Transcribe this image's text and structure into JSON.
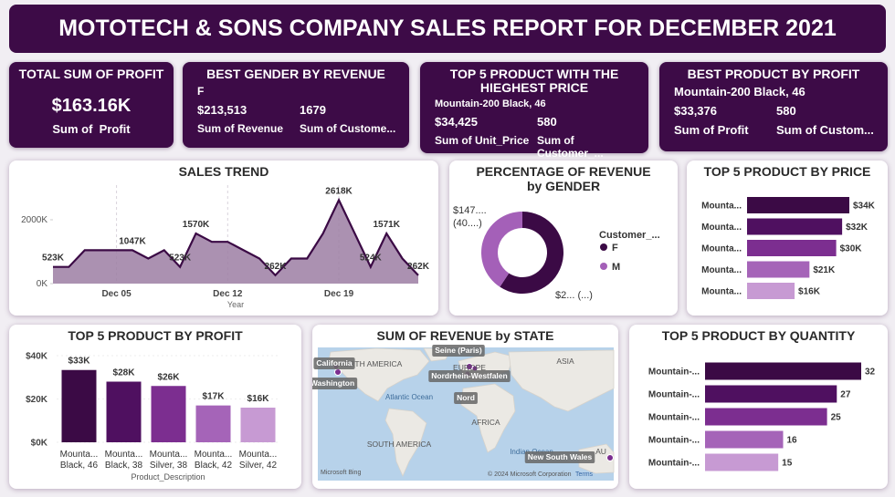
{
  "header": {
    "title": "MOTOTECH & SONS COMPANY SALES REPORT FOR DECEMBER 2021"
  },
  "cards": [
    {
      "title": "TOTAL SUM OF PROFIT",
      "value": "$163.16K",
      "label": "Sum of  Profit"
    },
    {
      "title": "BEST GENDER BY REVENUE",
      "subtitle": "F",
      "metrics": [
        {
          "value": "$213,513",
          "label": "Sum of Revenue"
        },
        {
          "value": "1679",
          "label": "Sum of Custome..."
        }
      ]
    },
    {
      "title": "TOP 5 PRODUCT WITH THE HIEGHEST PRICE",
      "subtitle": "Mountain-200 Black, 46",
      "metrics": [
        {
          "value": "$34,425",
          "label": "Sum of Unit_Price"
        },
        {
          "value": "580",
          "label": "Sum of Customer_..."
        }
      ]
    },
    {
      "title": "BEST PRODUCT BY PROFIT",
      "subtitle": "Mountain-200 Black, 46",
      "metrics": [
        {
          "value": "$33,376",
          "label": "Sum of Profit"
        },
        {
          "value": "580",
          "label": "Sum of Custom..."
        }
      ]
    }
  ],
  "chart_data": [
    {
      "type": "area",
      "title": "SALES TREND",
      "x_label": "Year",
      "color": "#3b0a45",
      "fill": "#9c7ea3",
      "x": [
        1,
        2,
        3,
        4,
        5,
        6,
        7,
        8,
        9,
        10,
        11,
        12,
        13,
        14,
        15,
        16,
        17,
        18,
        19,
        20,
        21,
        22,
        23,
        24
      ],
      "values": [
        523000,
        523000,
        1047000,
        1047000,
        1047000,
        1047000,
        785000,
        1047000,
        523000,
        1570000,
        1309000,
        1309000,
        1047000,
        785000,
        262000,
        785000,
        785000,
        1570000,
        2618000,
        1571000,
        524000,
        1571000,
        785000,
        262000
      ],
      "value_labels": [
        "523K",
        null,
        null,
        null,
        null,
        "1047K",
        null,
        null,
        "523K",
        "1570K",
        null,
        null,
        null,
        null,
        "262K",
        null,
        null,
        null,
        "2618K",
        null,
        "524K",
        "1571K",
        null,
        "262K"
      ],
      "xlim": [
        1,
        24
      ],
      "xticks": [
        {
          "value": 5,
          "label": "Dec 05"
        },
        {
          "value": 12,
          "label": "Dec 12"
        },
        {
          "value": 19,
          "label": "Dec 19"
        }
      ],
      "ylim": [
        0,
        2800000
      ],
      "yticks": [
        {
          "value": 0,
          "label": "0K"
        },
        {
          "value": 2000000,
          "label": "2000K"
        }
      ]
    },
    {
      "type": "donut",
      "title": "PERCENTAGE OF REVENUE by GENDER",
      "legend_title": "Customer_...",
      "categories": [
        "F",
        "M"
      ],
      "values": [
        213513,
        147000
      ],
      "value_labels": [
        "$2... (...)",
        "$147.... (40....)"
      ],
      "colors": [
        "#3b0a45",
        "#a460b8"
      ]
    },
    {
      "type": "hbar",
      "title": "TOP 5 PRODUCT BY PRICE",
      "categories": [
        "Mounta...",
        "Mounta...",
        "Mounta...",
        "Mounta...",
        "Mounta..."
      ],
      "values": [
        34.425,
        32,
        30,
        21,
        16
      ],
      "value_labels": [
        "$34K",
        "$32K",
        "$30K",
        "$21K",
        "$16K"
      ],
      "colors": [
        "#3b0a45",
        "#4f1060",
        "#7c2e90",
        "#a564b8",
        "#c79ad3"
      ]
    },
    {
      "type": "bar",
      "title": "TOP 5 PRODUCT BY PROFIT",
      "x_label": "Product_Description",
      "categories": [
        "Mounta... Black, 46",
        "Mounta... Black, 38",
        "Mounta... Silver, 38",
        "Mounta... Black, 42",
        "Mounta... Silver, 42"
      ],
      "values": [
        33376,
        28000,
        26000,
        17000,
        16000
      ],
      "value_labels": [
        "$33K",
        "$28K",
        "$26K",
        "$17K",
        "$16K"
      ],
      "colors": [
        "#3b0a45",
        "#4f1060",
        "#7c2e90",
        "#a564b8",
        "#c79ad3"
      ],
      "ylim": [
        0,
        40000
      ],
      "yticks": [
        {
          "value": 0,
          "label": "$0K"
        },
        {
          "value": 20000,
          "label": "$20K"
        },
        {
          "value": 40000,
          "label": "$40K"
        }
      ]
    },
    {
      "type": "hbar",
      "title": "TOP 5 PRODUCT BY QUANTITY",
      "categories": [
        "Mountain-...",
        "Mountain-...",
        "Mountain-...",
        "Mountain-...",
        "Mountain-..."
      ],
      "values": [
        32,
        27,
        25,
        16,
        15
      ],
      "colors": [
        "#3b0a45",
        "#4f1060",
        "#7c2e90",
        "#a564b8",
        "#c79ad3"
      ]
    }
  ],
  "map": {
    "title": "SUM OF REVENUE by STATE",
    "labels": [
      "NORTH AMERICA",
      "EUROPE",
      "ASIA",
      "Atlantic Ocean",
      "AFRICA",
      "SOUTH AMERICA",
      "Indian Ocean",
      "AU"
    ],
    "chips": [
      "California",
      "Washington",
      "Seine (Paris)",
      "Nordrhein-Westfalen",
      "Nord",
      "New South Wales"
    ],
    "credit": "Microsoft Bing",
    "copyright": "© 2024 Microsoft Corporation",
    "terms": "Terms"
  }
}
